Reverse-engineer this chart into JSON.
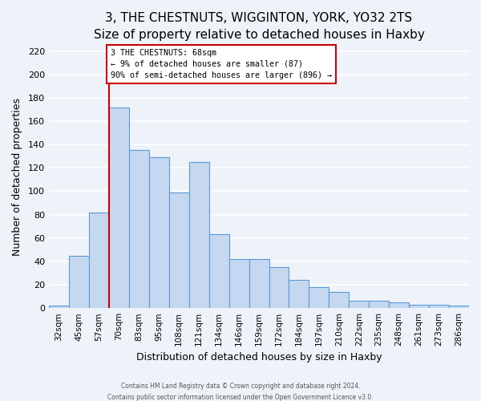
{
  "title": "3, THE CHESTNUTS, WIGGINTON, YORK, YO32 2TS",
  "subtitle": "Size of property relative to detached houses in Haxby",
  "xlabel": "Distribution of detached houses by size in Haxby",
  "ylabel": "Number of detached properties",
  "bar_labels": [
    "32sqm",
    "45sqm",
    "57sqm",
    "70sqm",
    "83sqm",
    "95sqm",
    "108sqm",
    "121sqm",
    "134sqm",
    "146sqm",
    "159sqm",
    "172sqm",
    "184sqm",
    "197sqm",
    "210sqm",
    "222sqm",
    "235sqm",
    "248sqm",
    "261sqm",
    "273sqm",
    "286sqm"
  ],
  "bar_values": [
    2,
    45,
    82,
    172,
    135,
    129,
    99,
    125,
    63,
    42,
    42,
    35,
    24,
    18,
    14,
    6,
    6,
    5,
    3,
    3,
    2
  ],
  "bar_color": "#c5d8f0",
  "bar_edge_color": "#5b9bd5",
  "vline_color": "#cc0000",
  "annotation_text": "3 THE CHESTNUTS: 68sqm\n← 9% of detached houses are smaller (87)\n90% of semi-detached houses are larger (896) →",
  "annotation_box_color": "white",
  "annotation_box_edgecolor": "#cc0000",
  "ylim": [
    0,
    225
  ],
  "yticks": [
    0,
    20,
    40,
    60,
    80,
    100,
    120,
    140,
    160,
    180,
    200,
    220
  ],
  "footer1": "Contains HM Land Registry data © Crown copyright and database right 2024.",
  "footer2": "Contains public sector information licensed under the Open Government Licence v3.0.",
  "background_color": "#eef3fa",
  "grid_color": "white",
  "title_fontsize": 11,
  "subtitle_fontsize": 9.5
}
